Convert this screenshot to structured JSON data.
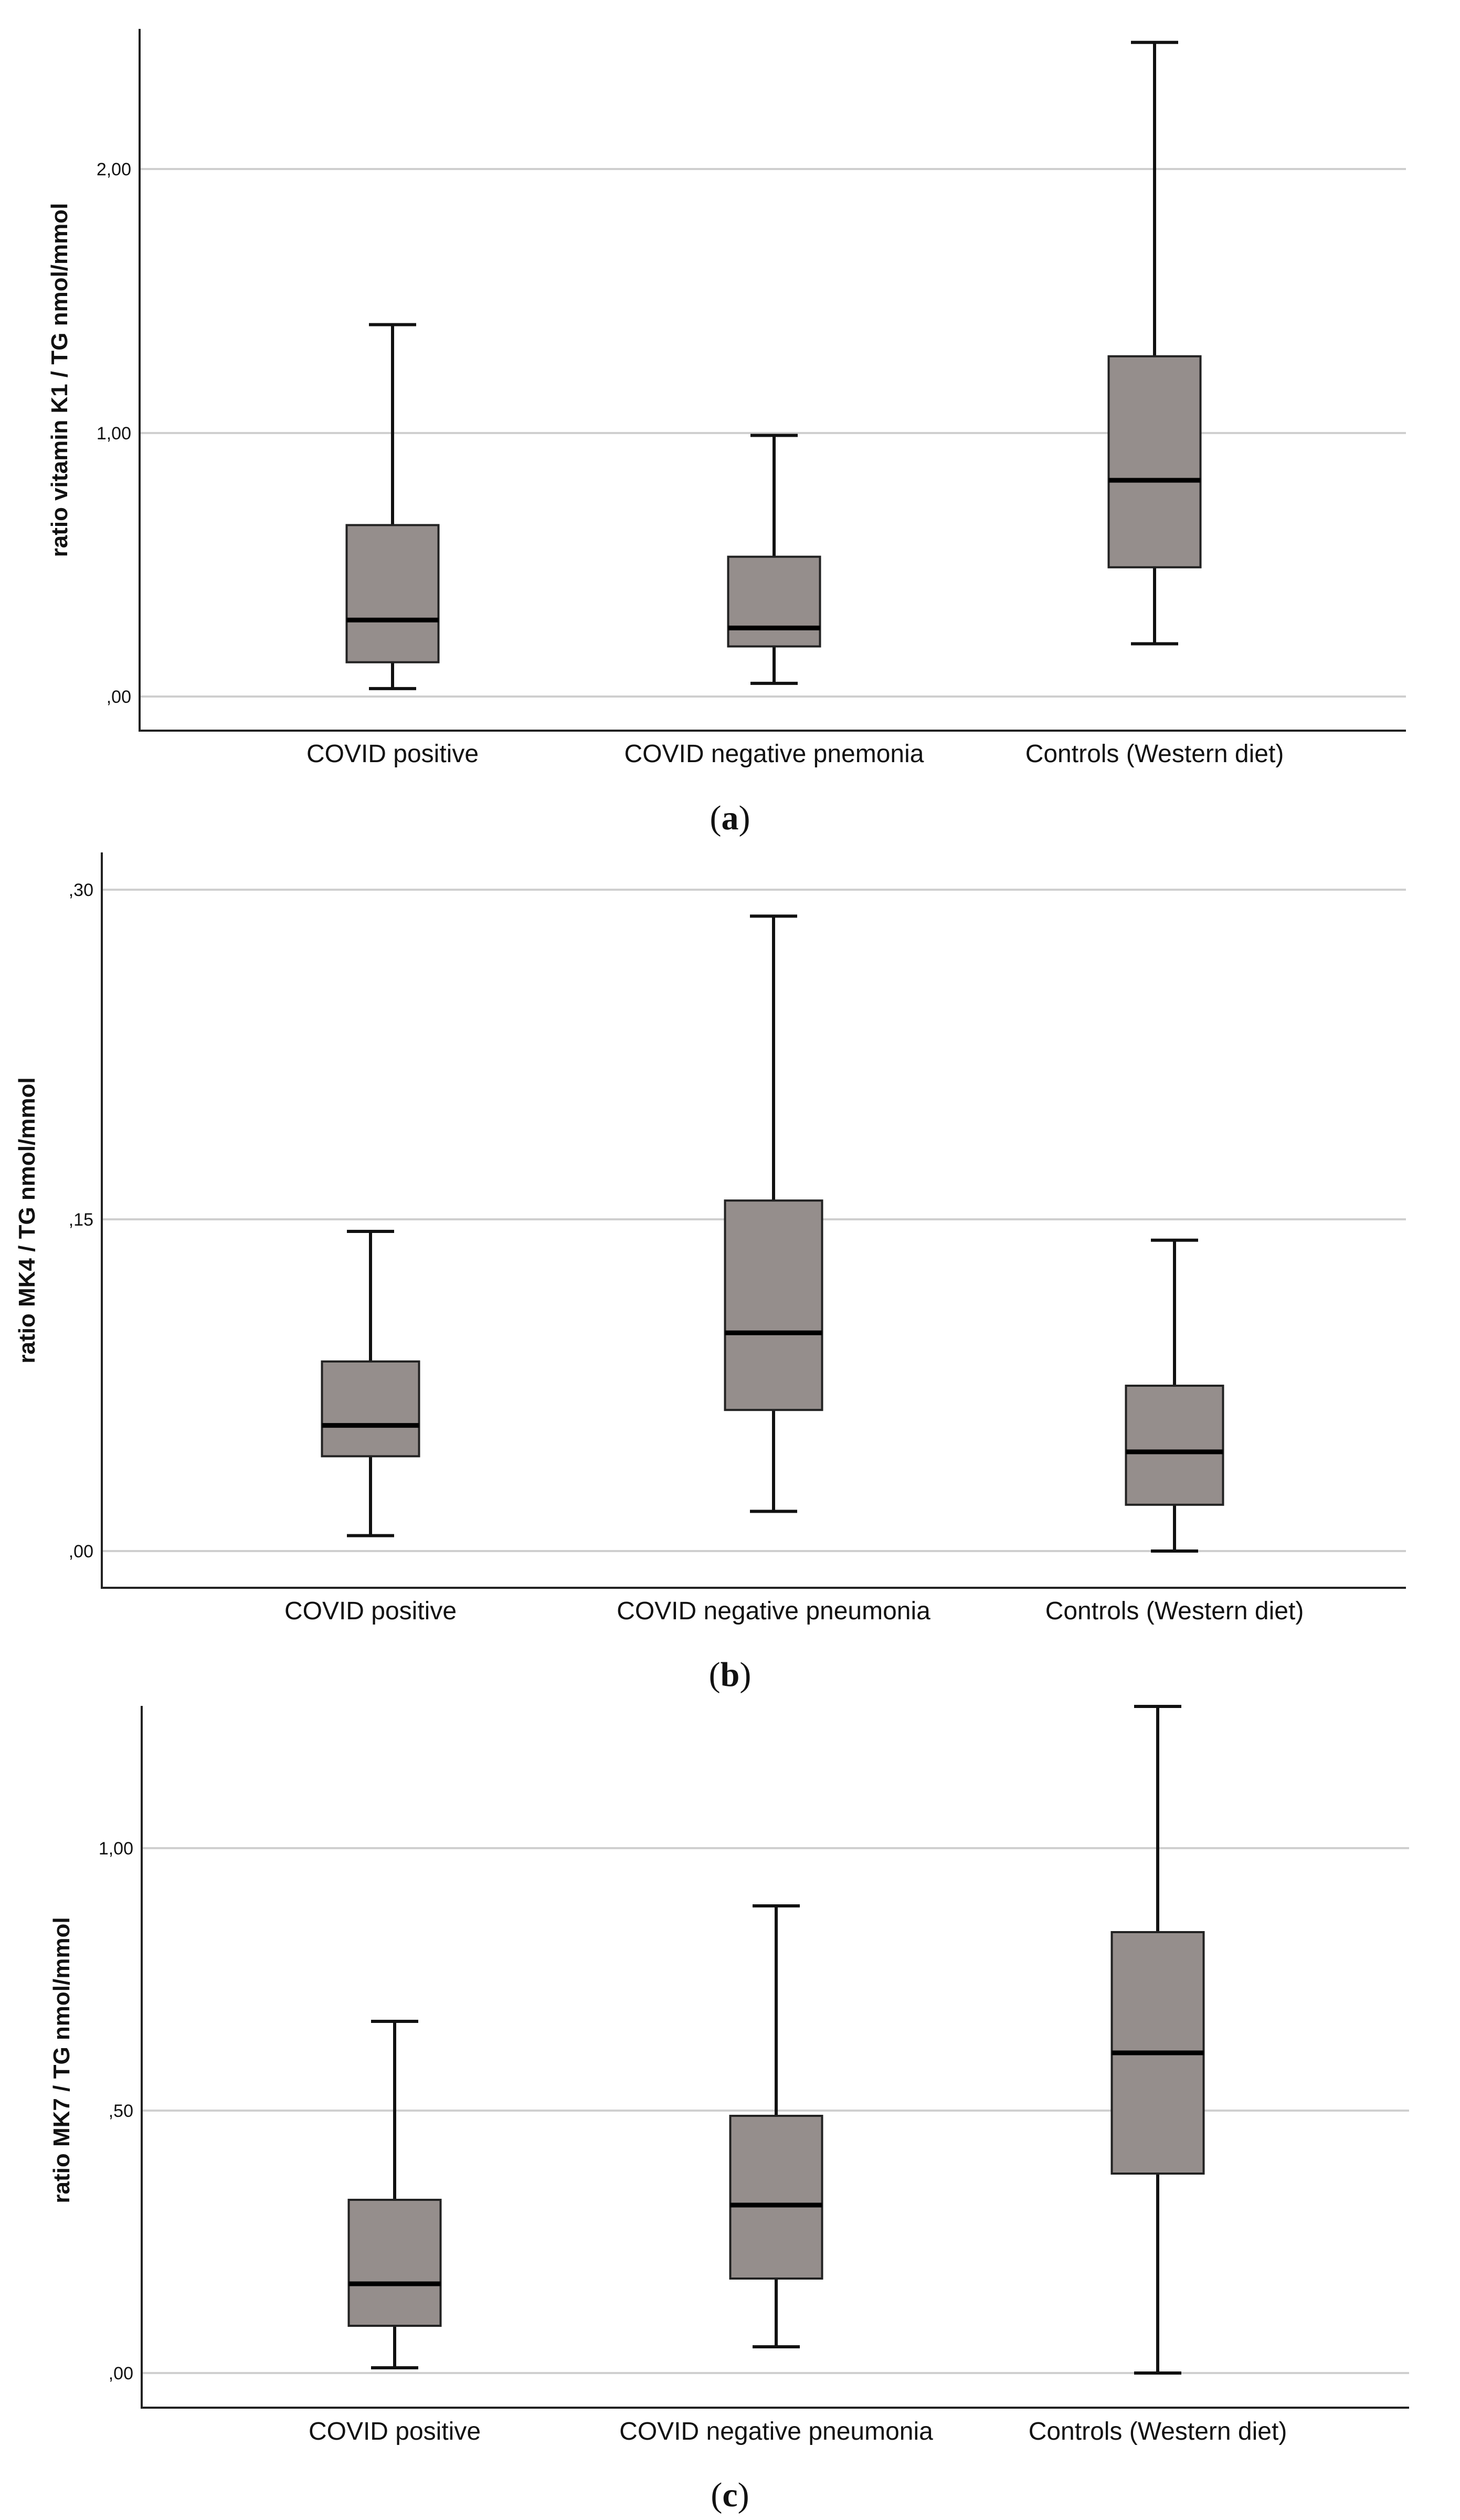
{
  "colors": {
    "box_fill": "#958e8c",
    "grid": "#cfcfcf",
    "axis": "#222222"
  },
  "chart_data": [
    {
      "type": "box",
      "panel_label": "a",
      "ylabel": "ratio vitamin K1 / TG  nmol/mmol",
      "categories": [
        "COVID positive",
        "COVID negative pnemonia",
        "Controls (Western diet)"
      ],
      "yticks": [
        0,
        1,
        2
      ],
      "ytick_labels": [
        ",00",
        "1,00",
        "2,00"
      ],
      "ylim": [
        -0.13,
        2.54
      ],
      "boxes": [
        {
          "min": 0.03,
          "q1": 0.13,
          "median": 0.29,
          "q3": 0.65,
          "max": 1.41
        },
        {
          "min": 0.05,
          "q1": 0.19,
          "median": 0.26,
          "q3": 0.53,
          "max": 0.99
        },
        {
          "min": 0.2,
          "q1": 0.49,
          "median": 0.82,
          "q3": 1.29,
          "max": 2.48
        }
      ]
    },
    {
      "type": "box",
      "panel_label": "b",
      "ylabel": "ratio MK4 / TG  nmol/mmol",
      "categories": [
        "COVID positive",
        "COVID negative pneumonia",
        "Controls (Western diet)"
      ],
      "yticks": [
        0,
        0.15,
        0.3
      ],
      "ytick_labels": [
        ",00",
        ",15",
        ",30"
      ],
      "ylim": [
        -0.017,
        0.317
      ],
      "boxes": [
        {
          "min": 0.007,
          "q1": 0.043,
          "median": 0.057,
          "q3": 0.086,
          "max": 0.145
        },
        {
          "min": 0.018,
          "q1": 0.064,
          "median": 0.099,
          "q3": 0.159,
          "max": 0.288
        },
        {
          "min": 0.0,
          "q1": 0.021,
          "median": 0.045,
          "q3": 0.075,
          "max": 0.141
        }
      ]
    },
    {
      "type": "box",
      "panel_label": "c",
      "ylabel": "ratio MK7 / TG  nmol/mmol",
      "categories": [
        "COVID positive",
        "COVID negative pneumonia",
        "Controls (Western diet)"
      ],
      "yticks": [
        0,
        0.5,
        1
      ],
      "ytick_labels": [
        ",00",
        ",50",
        "1,00"
      ],
      "ylim": [
        -0.066,
        1.275
      ],
      "boxes": [
        {
          "min": 0.01,
          "q1": 0.09,
          "median": 0.17,
          "q3": 0.33,
          "max": 0.67
        },
        {
          "min": 0.05,
          "q1": 0.18,
          "median": 0.32,
          "q3": 0.49,
          "max": 0.89
        },
        {
          "min": 0.0,
          "q1": 0.38,
          "median": 0.61,
          "q3": 0.84,
          "max": 1.27
        }
      ]
    }
  ]
}
